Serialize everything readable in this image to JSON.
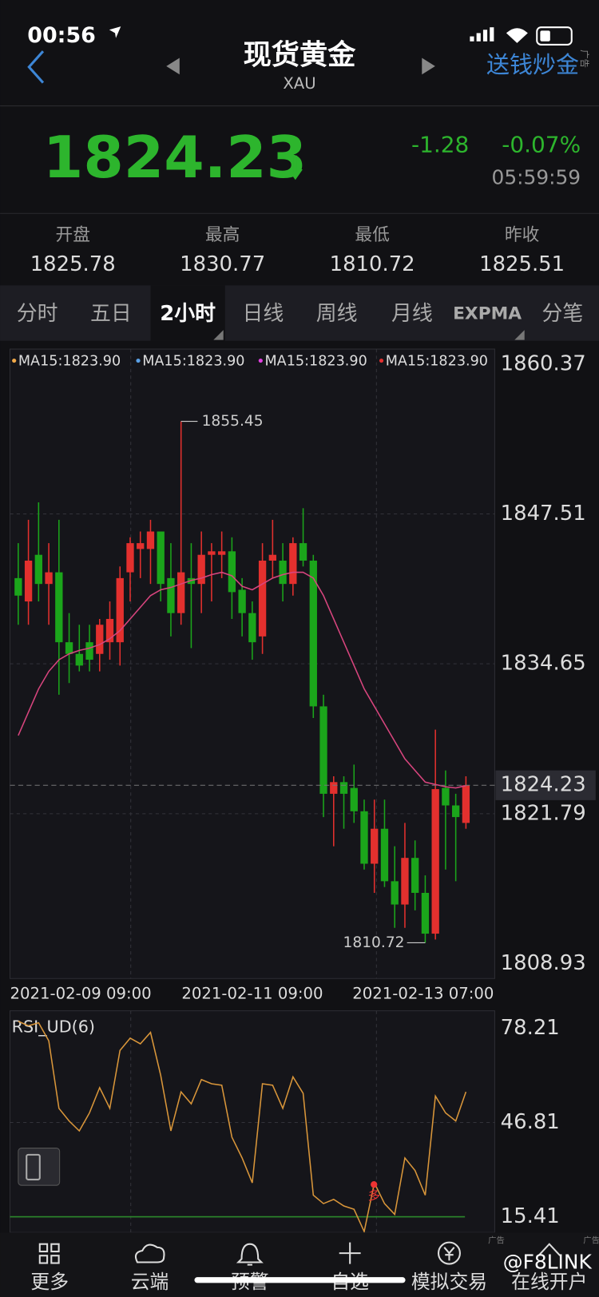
{
  "status_bar": {
    "time": "00:56"
  },
  "header": {
    "title": "现货黄金",
    "symbol": "XAU",
    "promo": "送钱炒金"
  },
  "quote": {
    "change": "-1.28",
    "change_pct": "-0.07%",
    "time": "05:59:59"
  },
  "stats": [
    {
      "label": "开盘",
      "value": "1825.78"
    },
    {
      "label": "最高",
      "value": "1830.77"
    },
    {
      "label": "最低",
      "value": "1810.72"
    },
    {
      "label": "昨收",
      "value": "1825.51"
    }
  ],
  "tabs": [
    "分时",
    "五日",
    "2小时",
    "日线",
    "周线",
    "月线",
    "EXPMA",
    "分笔"
  ],
  "chart_data": [
    {
      "type": "candlestick",
      "last_price": 1824.23,
      "legend": [
        {
          "label": "MA15:1823.90",
          "color": "#f0a848"
        },
        {
          "label": "MA15:1823.90",
          "color": "#5aa0e6"
        },
        {
          "label": "MA15:1823.90",
          "color": "#e040e0"
        },
        {
          "label": "MA15:1823.90",
          "color": "#e03030"
        }
      ],
      "ylim": [
        1807.65,
        1861.65
      ],
      "yticks": [
        1860.37,
        1847.51,
        1834.65,
        1821.79,
        1808.93
      ],
      "x_tick_labels": [
        "2021-02-09 09:00",
        "2021-02-11 09:00",
        "2021-02-13 07:00"
      ],
      "grid": true,
      "up_color": "#e3302e",
      "down_color": "#1ba51b",
      "open": [
        1842,
        1840,
        1844,
        1841.5,
        1842.5,
        1836.5,
        1835.5,
        1836.5,
        1835.5,
        1836.5,
        1836.5,
        1842.5,
        1844.5,
        1844.5,
        1846,
        1842,
        1839,
        1842,
        1841.5,
        1844,
        1844,
        1844.3,
        1841,
        1839,
        1837,
        1843.5,
        1843.5,
        1841.5,
        1845,
        1843.5,
        1831,
        1823.5,
        1824.5,
        1824,
        1822,
        1817.5,
        1820.5,
        1816,
        1814,
        1818,
        1815,
        1811.5,
        1824,
        1822.5,
        1821
      ],
      "high": [
        1845,
        1847,
        1848.5,
        1845,
        1847,
        1839,
        1838,
        1838,
        1838.5,
        1840,
        1843,
        1845.5,
        1846,
        1847,
        1846,
        1845,
        1855.45,
        1845,
        1846,
        1845,
        1846,
        1845.5,
        1842,
        1840,
        1845,
        1847,
        1845,
        1845.5,
        1848,
        1844,
        1832,
        1825,
        1825,
        1826,
        1823,
        1823,
        1823,
        1819,
        1821,
        1819.5,
        1816.5,
        1829,
        1825.5,
        1823.5,
        1825
      ],
      "low": [
        1838,
        1838,
        1840,
        1838,
        1832,
        1833,
        1834,
        1834,
        1834,
        1835,
        1834.5,
        1840,
        1842,
        1841.5,
        1840,
        1837,
        1838,
        1836,
        1839,
        1840,
        1842,
        1838.5,
        1837,
        1835,
        1835.5,
        1842,
        1840,
        1840.5,
        1843,
        1830,
        1821.5,
        1819,
        1820.5,
        1821,
        1817,
        1815,
        1815.5,
        1812,
        1812,
        1813.5,
        1810.72,
        1811,
        1817,
        1816,
        1820.5
      ],
      "close": [
        1840.5,
        1843.5,
        1841.5,
        1842.5,
        1836.5,
        1835.5,
        1834.5,
        1835,
        1838,
        1838.5,
        1842,
        1845,
        1845,
        1846,
        1841.5,
        1839,
        1842.5,
        1841.5,
        1844,
        1844.3,
        1844.3,
        1840.8,
        1839,
        1836.5,
        1843.5,
        1844,
        1841.5,
        1845,
        1843.5,
        1831,
        1823.5,
        1824.5,
        1823.5,
        1822,
        1817.5,
        1820.5,
        1816,
        1814,
        1818,
        1815,
        1811.5,
        1823.9,
        1822.5,
        1821.5,
        1824.23
      ],
      "ma": {
        "color": "#d8457e",
        "values": [
          1828.5,
          1830.5,
          1832.5,
          1834,
          1835,
          1835.5,
          1835.8,
          1836,
          1836.3,
          1836.8,
          1837.5,
          1838.5,
          1839.5,
          1840.5,
          1841,
          1841.2,
          1841.5,
          1841.8,
          1842,
          1842.3,
          1842.5,
          1842.2,
          1841.3,
          1841,
          1841.5,
          1842,
          1842.3,
          1842.5,
          1842.5,
          1842,
          1840.5,
          1838.5,
          1836.5,
          1834.5,
          1832.5,
          1831,
          1829.5,
          1828,
          1826.5,
          1825.5,
          1824.5,
          1824.3,
          1824.1,
          1824,
          1824.2
        ]
      },
      "high_label": 1855.45,
      "low_label": 1810.72
    },
    {
      "type": "line",
      "title": "RSI_UD(6)",
      "ylim": [
        10.18,
        83.99
      ],
      "yticks": [
        78.21,
        46.81,
        15.41
      ],
      "color": "#d9963a",
      "reference_color": "#2c8a2c",
      "values": [
        80.5,
        79,
        80,
        74,
        51.5,
        47.3,
        44,
        50,
        58.4,
        51.5,
        70.8,
        74.9,
        73,
        76.8,
        62.5,
        44,
        57,
        53,
        61.1,
        59.7,
        59.2,
        41.9,
        35,
        26.7,
        59.7,
        59.2,
        51.5,
        62,
        56.5,
        22.6,
        19.8,
        21.2,
        19,
        17.9,
        10.5,
        26.7,
        19.8,
        16.2,
        35,
        30.8,
        22.6,
        55.6,
        50,
        47.3,
        57
      ],
      "signal": "多"
    }
  ],
  "nav": [
    "更多",
    "云端",
    "预警",
    "自选",
    "模拟交易",
    "在线开户"
  ],
  "ads": [
    "广告",
    "广告",
    "广告"
  ],
  "watermark": "@F8LINK"
}
